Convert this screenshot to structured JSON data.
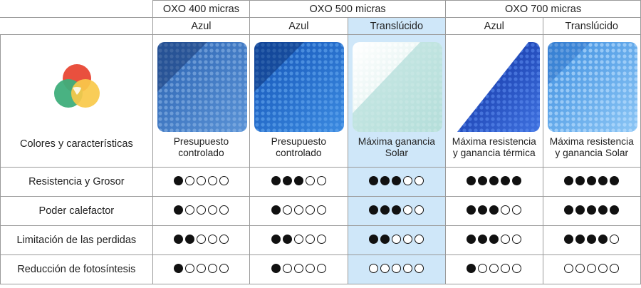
{
  "header": {
    "products": [
      {
        "label": "OXO 400 micras"
      },
      {
        "label": "OXO 500 micras"
      },
      {
        "label": "OXO 700 micras"
      }
    ],
    "variants": [
      "Azul",
      "Azul",
      "Translúcido",
      "Azul",
      "Translúcido"
    ]
  },
  "features_title": "Colores y características",
  "columns": [
    {
      "caption": "Presupuesto\ncontrolado",
      "swatch": "blue",
      "highlight": false
    },
    {
      "caption": "Presupuesto\ncontrolado",
      "swatch": "blue-bright",
      "highlight": false
    },
    {
      "caption": "Máxima ganancia\nSolar",
      "swatch": "translucent",
      "highlight": true
    },
    {
      "caption": "Máxima resistencia\ny ganancia térmica",
      "swatch": "deep-blue",
      "highlight": false
    },
    {
      "caption": "Máxima resistencia\ny ganancia Solar",
      "swatch": "light-blue",
      "highlight": false
    }
  ],
  "rows": [
    {
      "label": "Resistencia y Grosor",
      "ratings": [
        1,
        3,
        3,
        5,
        5
      ]
    },
    {
      "label": "Poder calefactor",
      "ratings": [
        1,
        1,
        3,
        3,
        5
      ]
    },
    {
      "label": "Limitación de las perdidas",
      "ratings": [
        2,
        2,
        2,
        3,
        4
      ]
    },
    {
      "label": "Reducción de fotosíntesis",
      "ratings": [
        1,
        1,
        0,
        1,
        0
      ]
    }
  ],
  "rating_max": 5,
  "colors": {
    "highlight": "#cfe7f9",
    "logo_red": "#e9503e",
    "logo_orange": "#f4a259",
    "logo_green": "#3fae7b",
    "logo_yellow": "#f8c94a"
  }
}
